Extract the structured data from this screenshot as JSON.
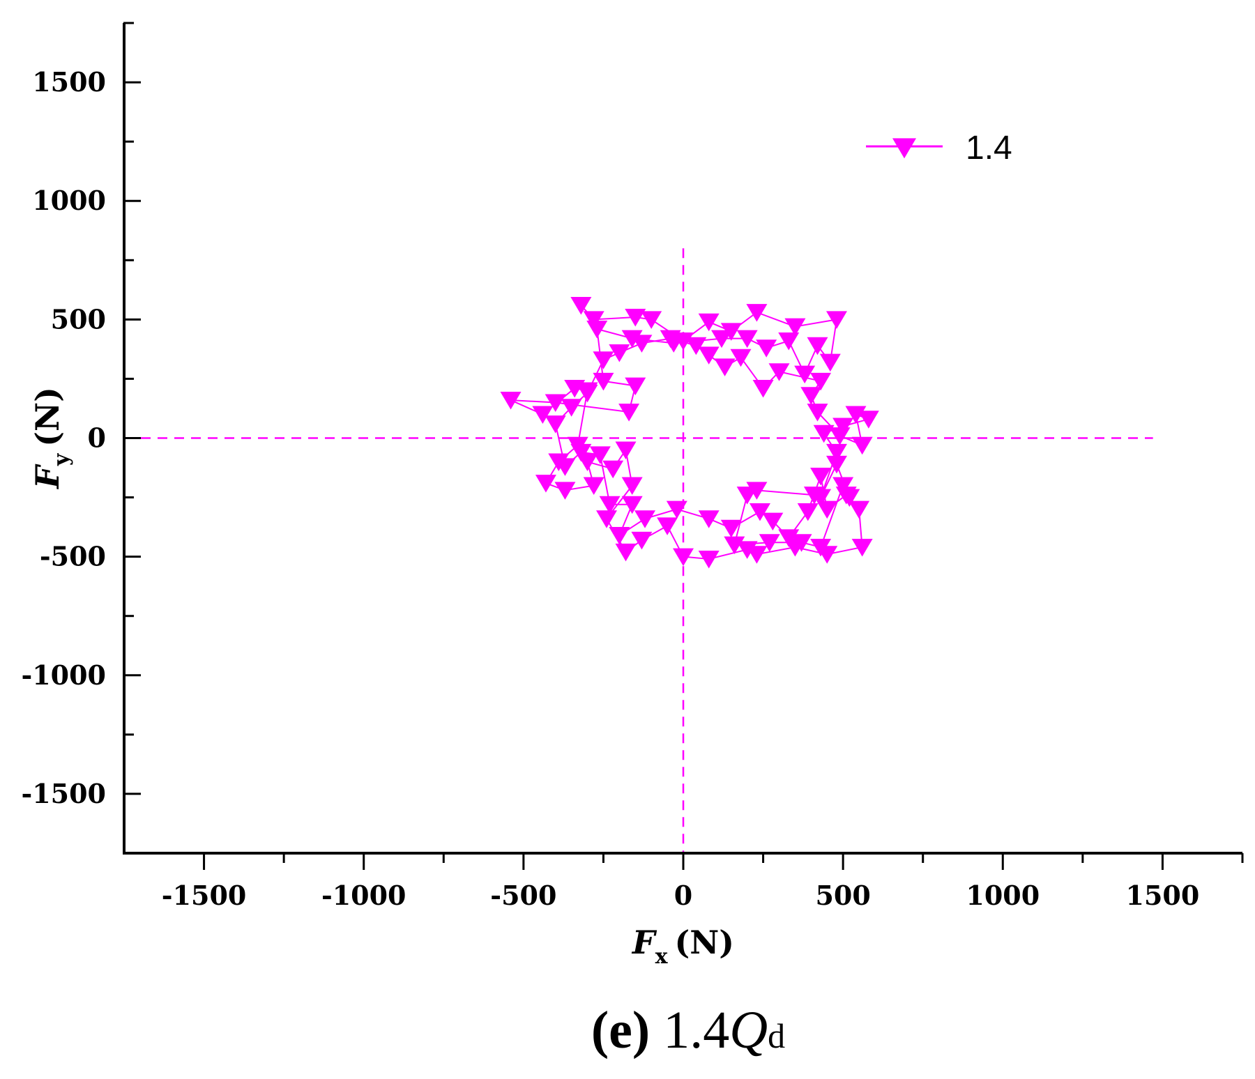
{
  "chart_data": {
    "type": "scatter",
    "xlabel": {
      "main": "F",
      "sub": "x",
      "unit": "(N)"
    },
    "ylabel": {
      "main": "F",
      "sub": "y",
      "unit": "(N)"
    },
    "xlim": [
      -1750,
      1750
    ],
    "ylim": [
      -1750,
      1750
    ],
    "xticks": [
      -1500,
      -1000,
      -500,
      0,
      500,
      1000,
      1500
    ],
    "yticks": [
      -1500,
      -1000,
      -500,
      0,
      500,
      1000,
      1500
    ],
    "xtick_labels": [
      "-1500",
      "-1000",
      "-500",
      "0",
      "500",
      "1000",
      "1500"
    ],
    "ytick_labels": [
      "-1500",
      "-1000",
      "-500",
      "0",
      "500",
      "1000",
      "1500"
    ],
    "grid": false,
    "reference_lines": {
      "style": "dashed",
      "color": "#ff00ff",
      "x": 0,
      "y": 0
    },
    "legend": {
      "position": "top-right"
    },
    "series": [
      {
        "name": "1.4",
        "color": "#ff00ff",
        "marker": "triangle-down",
        "points": [
          [
            -320,
            560
          ],
          [
            -280,
            500
          ],
          [
            -150,
            510
          ],
          [
            -100,
            500
          ],
          [
            0,
            410
          ],
          [
            80,
            490
          ],
          [
            150,
            450
          ],
          [
            230,
            530
          ],
          [
            350,
            470
          ],
          [
            480,
            500
          ],
          [
            460,
            320
          ],
          [
            420,
            390
          ],
          [
            380,
            270
          ],
          [
            330,
            410
          ],
          [
            260,
            380
          ],
          [
            200,
            420
          ],
          [
            120,
            420
          ],
          [
            -30,
            400
          ],
          [
            -160,
            420
          ],
          [
            -270,
            460
          ],
          [
            -250,
            240
          ],
          [
            -150,
            220
          ],
          [
            -170,
            110
          ],
          [
            -400,
            150
          ],
          [
            -540,
            160
          ],
          [
            -440,
            100
          ],
          [
            -340,
            210
          ],
          [
            -300,
            200
          ],
          [
            -330,
            -30
          ],
          [
            -390,
            -100
          ],
          [
            -430,
            -190
          ],
          [
            -370,
            -220
          ],
          [
            -280,
            -200
          ],
          [
            -300,
            -100
          ],
          [
            -220,
            -130
          ],
          [
            -180,
            -50
          ],
          [
            -160,
            -200
          ],
          [
            -240,
            -340
          ],
          [
            -180,
            -480
          ],
          [
            -130,
            -430
          ],
          [
            -50,
            -370
          ],
          [
            0,
            -500
          ],
          [
            80,
            -510
          ],
          [
            200,
            -470
          ],
          [
            230,
            -490
          ],
          [
            350,
            -460
          ],
          [
            450,
            -490
          ],
          [
            560,
            -460
          ],
          [
            550,
            -300
          ],
          [
            520,
            -250
          ],
          [
            480,
            -110
          ],
          [
            430,
            -250
          ],
          [
            480,
            -60
          ],
          [
            440,
            20
          ],
          [
            500,
            50
          ],
          [
            580,
            80
          ],
          [
            540,
            100
          ],
          [
            560,
            -30
          ],
          [
            490,
            10
          ],
          [
            420,
            110
          ],
          [
            400,
            180
          ],
          [
            430,
            240
          ],
          [
            300,
            280
          ],
          [
            250,
            210
          ],
          [
            180,
            340
          ],
          [
            130,
            300
          ],
          [
            80,
            350
          ],
          [
            40,
            390
          ],
          [
            -40,
            420
          ],
          [
            -130,
            400
          ],
          [
            -200,
            360
          ],
          [
            -250,
            330
          ],
          [
            -300,
            190
          ],
          [
            -350,
            130
          ],
          [
            -400,
            60
          ],
          [
            -370,
            -120
          ],
          [
            -320,
            -60
          ],
          [
            -260,
            -70
          ],
          [
            -230,
            -280
          ],
          [
            -160,
            -280
          ],
          [
            -200,
            -410
          ],
          [
            -120,
            -340
          ],
          [
            -20,
            -300
          ],
          [
            80,
            -340
          ],
          [
            150,
            -380
          ],
          [
            240,
            -310
          ],
          [
            280,
            -350
          ],
          [
            330,
            -420
          ],
          [
            390,
            -310
          ],
          [
            430,
            -160
          ],
          [
            450,
            -300
          ],
          [
            510,
            -240
          ],
          [
            500,
            -200
          ],
          [
            430,
            -460
          ],
          [
            370,
            -440
          ],
          [
            270,
            -440
          ],
          [
            160,
            -450
          ],
          [
            200,
            -240
          ],
          [
            230,
            -220
          ],
          [
            410,
            -240
          ]
        ]
      }
    ],
    "caption": {
      "panel": "(e)",
      "text": " 1.4",
      "italic": "Q",
      "sub": "d"
    }
  }
}
